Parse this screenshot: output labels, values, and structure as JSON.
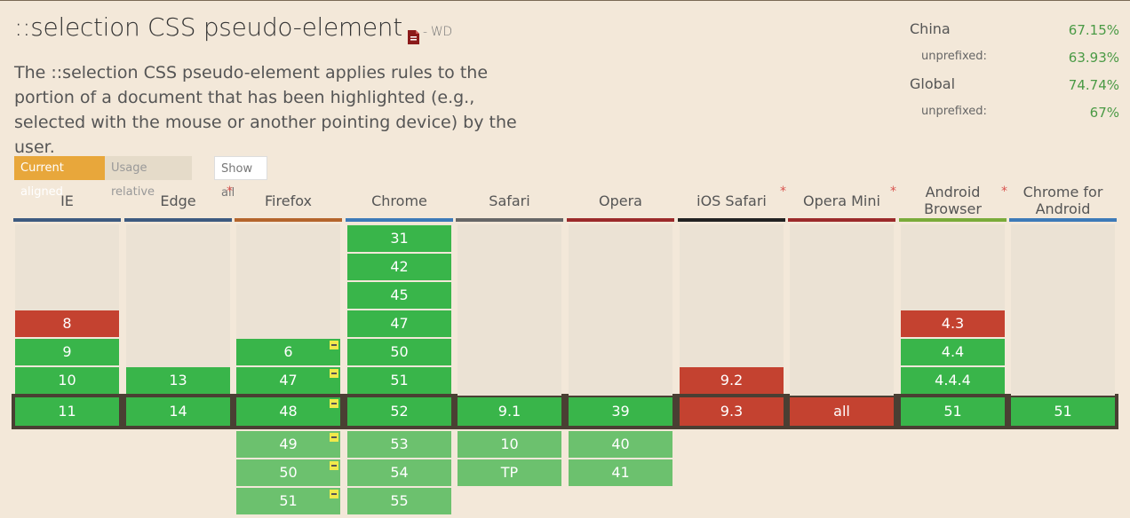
{
  "feature": {
    "title": "::selection CSS pseudo-element",
    "status": "- WD",
    "description": "The ::selection CSS pseudo-element applies rules to the portion of a document that has been highlighted (e.g., selected with the mouse or another pointing device) by the user."
  },
  "stats": {
    "china_label": "China",
    "china_value": "67.15%",
    "china_unprefixed_label": "unprefixed:",
    "china_unprefixed_value": "63.93%",
    "global_label": "Global",
    "global_value": "74.74%",
    "global_unprefixed_label": "unprefixed:",
    "global_unprefixed_value": "67%"
  },
  "view_buttons": {
    "current_aligned": "Current aligned",
    "usage_relative": "Usage relative",
    "show_all": "Show all"
  },
  "colors": {
    "supported": "#39b54a",
    "unsupported": "#c44230",
    "future": "#6cc16e",
    "accent": "#e8a73b"
  },
  "browsers": [
    {
      "name": "IE",
      "star": false,
      "bar_color": "#3d5a80",
      "past": [
        {
          "v": "8",
          "s": "n"
        },
        {
          "v": "9",
          "s": "y"
        },
        {
          "v": "10",
          "s": "y"
        }
      ],
      "current": {
        "v": "11",
        "s": "y"
      },
      "future": []
    },
    {
      "name": "Edge",
      "star": true,
      "bar_color": "#3d5a80",
      "past": [
        {
          "v": "13",
          "s": "y"
        }
      ],
      "current": {
        "v": "14",
        "s": "y"
      },
      "future": []
    },
    {
      "name": "Firefox",
      "star": false,
      "bar_color": "#b4652c",
      "past": [
        {
          "v": "6",
          "s": "y",
          "note": true
        },
        {
          "v": "47",
          "s": "y",
          "note": true
        }
      ],
      "current": {
        "v": "48",
        "s": "y",
        "note": true
      },
      "future": [
        {
          "v": "49",
          "note": true
        },
        {
          "v": "50",
          "note": true
        },
        {
          "v": "51",
          "note": true
        }
      ]
    },
    {
      "name": "Chrome",
      "star": false,
      "bar_color": "#3d7ab8",
      "past": [
        {
          "v": "31",
          "s": "y"
        },
        {
          "v": "42",
          "s": "y"
        },
        {
          "v": "45",
          "s": "y"
        },
        {
          "v": "47",
          "s": "y"
        },
        {
          "v": "50",
          "s": "y"
        },
        {
          "v": "51",
          "s": "y"
        }
      ],
      "current": {
        "v": "52",
        "s": "y"
      },
      "future": [
        {
          "v": "53"
        },
        {
          "v": "54"
        },
        {
          "v": "55"
        }
      ]
    },
    {
      "name": "Safari",
      "star": false,
      "bar_color": "#666666",
      "past": [],
      "current": {
        "v": "9.1",
        "s": "y"
      },
      "future": [
        {
          "v": "10"
        },
        {
          "v": "TP"
        }
      ]
    },
    {
      "name": "Opera",
      "star": false,
      "bar_color": "#9b2a2a",
      "past": [],
      "current": {
        "v": "39",
        "s": "y"
      },
      "future": [
        {
          "v": "40"
        },
        {
          "v": "41"
        }
      ]
    },
    {
      "name": "iOS Safari",
      "star": true,
      "bar_color": "#222222",
      "past": [
        {
          "v": "9.2",
          "s": "n"
        }
      ],
      "current": {
        "v": "9.3",
        "s": "n"
      },
      "future": []
    },
    {
      "name": "Opera Mini",
      "star": true,
      "bar_color": "#9b2a2a",
      "past": [],
      "current": {
        "v": "all",
        "s": "n"
      },
      "future": []
    },
    {
      "name": "Android Browser",
      "star": true,
      "bar_color": "#7aab3a",
      "past": [
        {
          "v": "4.3",
          "s": "n"
        },
        {
          "v": "4.4",
          "s": "y"
        },
        {
          "v": "4.4.4",
          "s": "y"
        }
      ],
      "current": {
        "v": "51",
        "s": "y"
      },
      "future": []
    },
    {
      "name": "Chrome for Android",
      "star": false,
      "bar_color": "#3d7ab8",
      "past": [],
      "current": {
        "v": "51",
        "s": "y"
      },
      "future": []
    }
  ]
}
